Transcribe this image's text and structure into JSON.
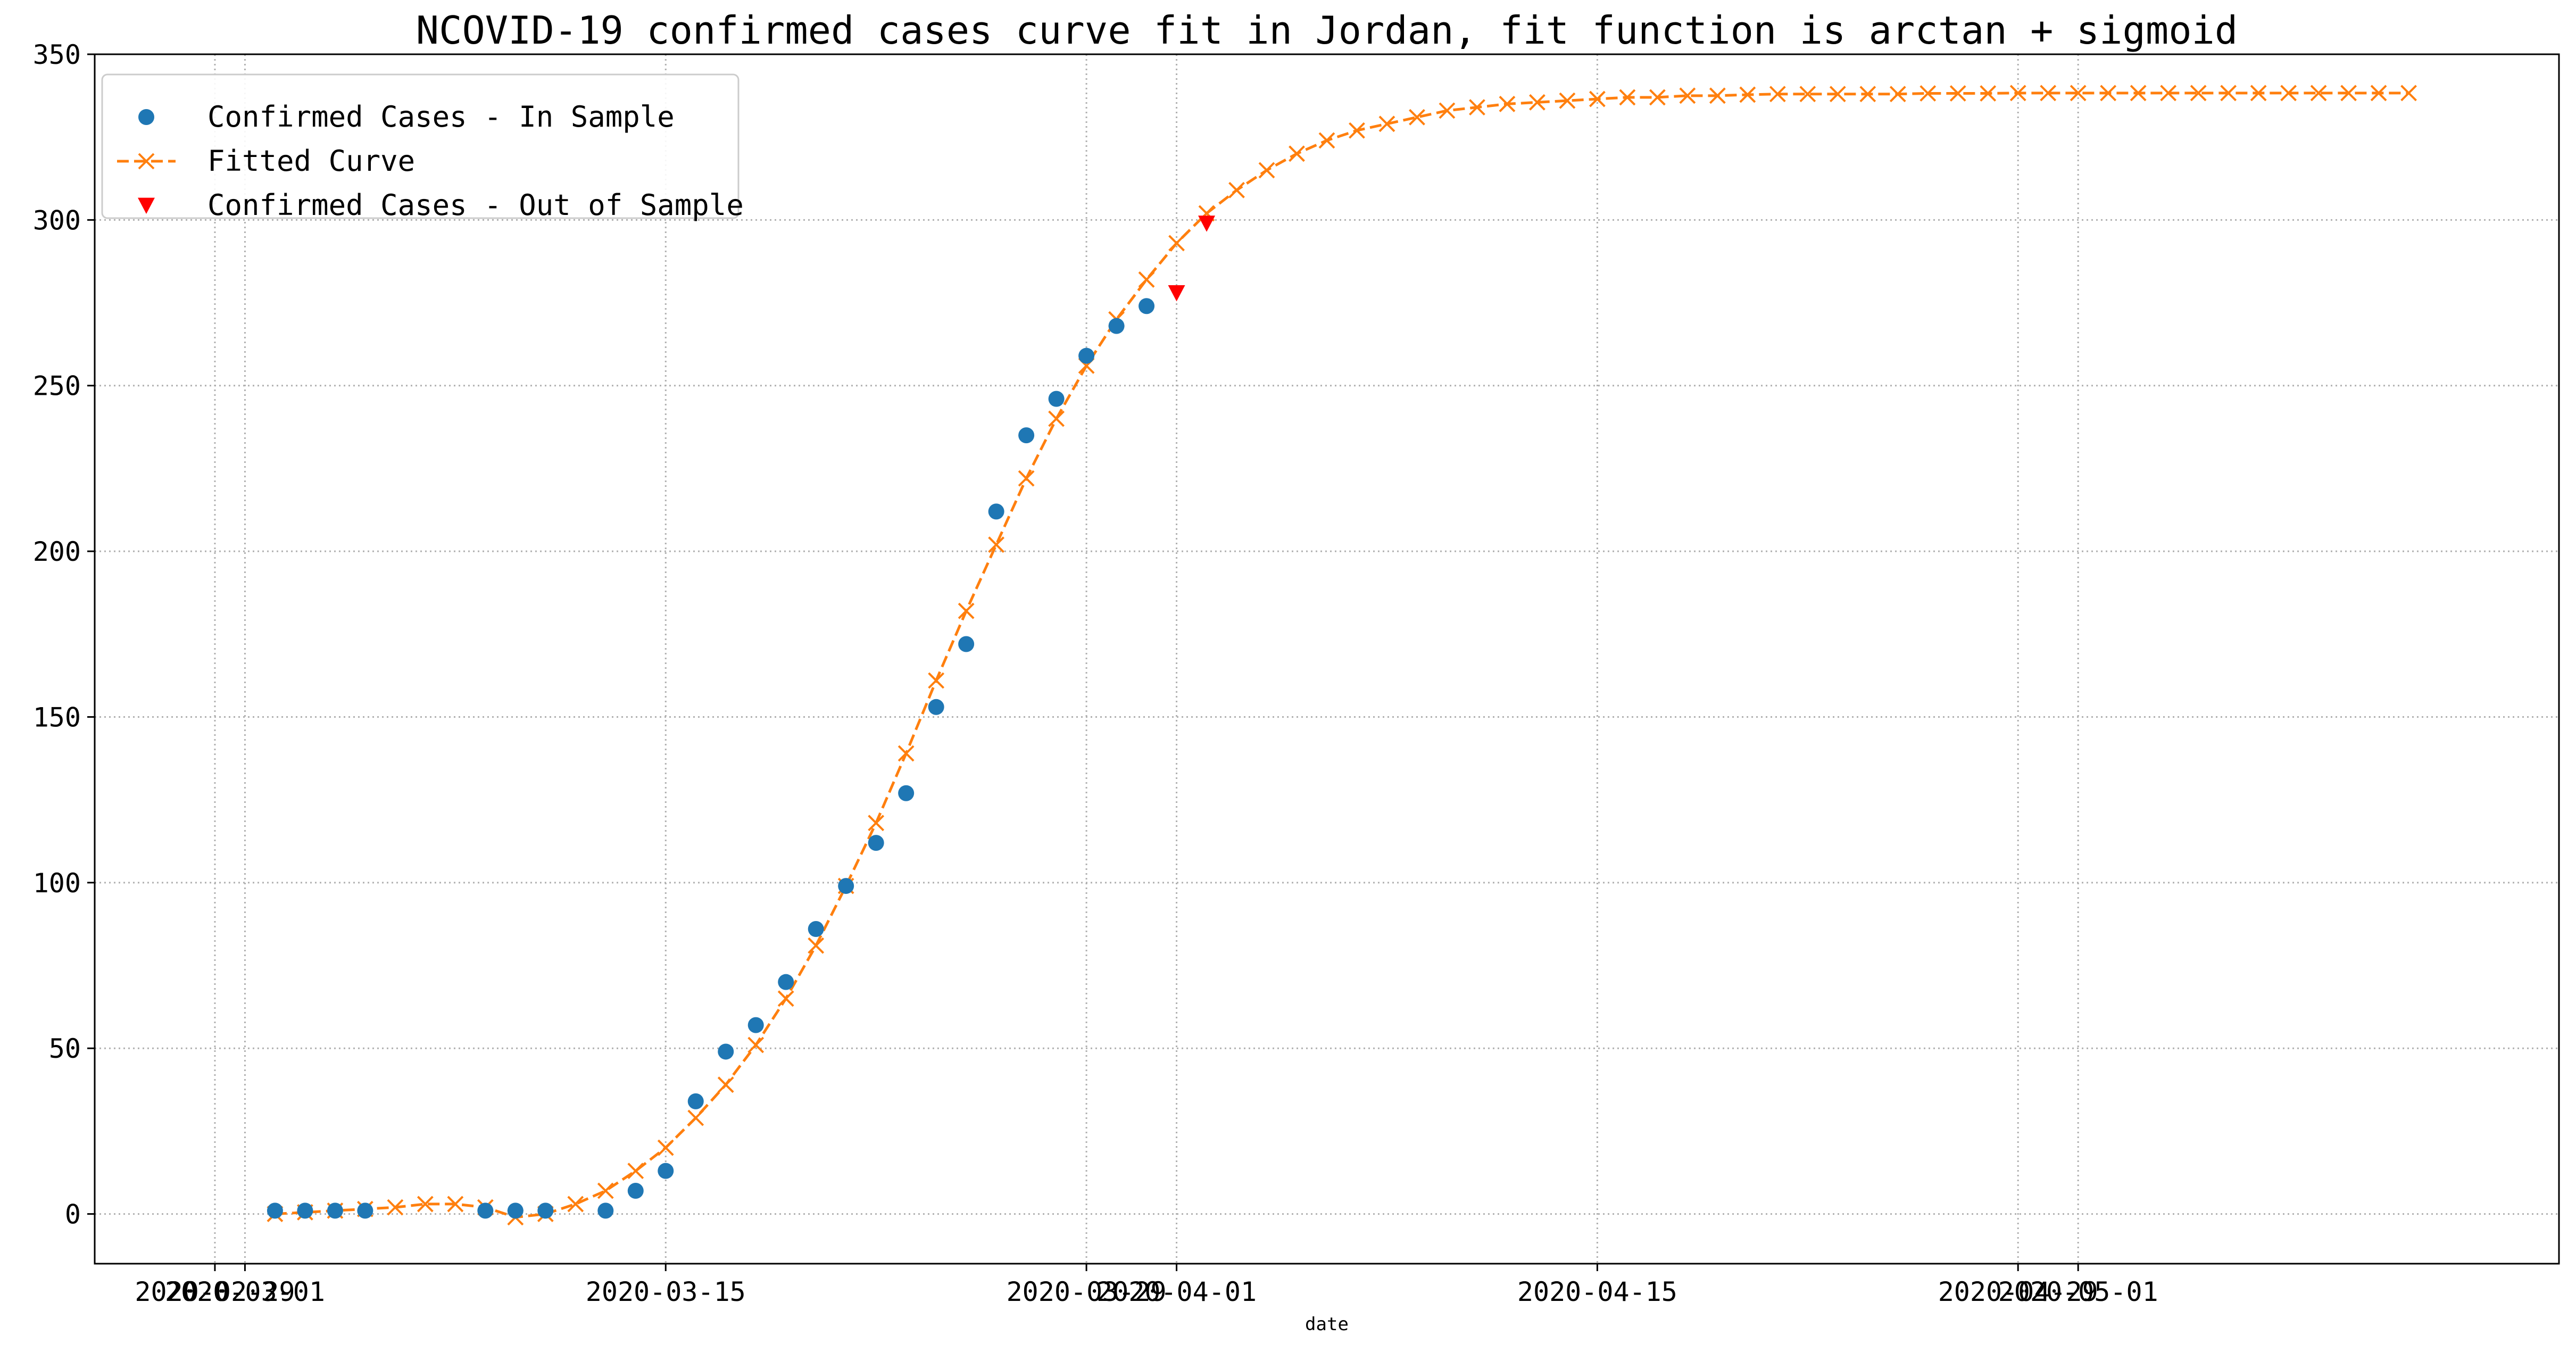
{
  "chart_data": {
    "type": "line",
    "title": "NCOVID-19 confirmed cases curve fit in Jordan, fit function is arctan + sigmoid",
    "xlabel": "date",
    "ylabel": "",
    "x_tick_labels": [
      "2020-02-29",
      "2020-03-01",
      "2020-03-15",
      "2020-03-29",
      "2020-04-01",
      "2020-04-15",
      "2020-04-29",
      "2020-05-01"
    ],
    "ylim": [
      -15,
      350
    ],
    "y_ticks": [
      0,
      50,
      100,
      150,
      200,
      250,
      300,
      350
    ],
    "grid": true,
    "legend_position": "top-left",
    "colors": {
      "in_sample": "#1f77b4",
      "fitted": "#ff7f0e",
      "out_sample": "#ff0000",
      "grid": "#b0b0b0"
    },
    "series": [
      {
        "name": "Confirmed Cases - In Sample",
        "marker": "circle",
        "points": [
          {
            "x": "2020-03-02",
            "y": 1
          },
          {
            "x": "2020-03-03",
            "y": 1
          },
          {
            "x": "2020-03-04",
            "y": 1
          },
          {
            "x": "2020-03-05",
            "y": 1
          },
          {
            "x": "2020-03-09",
            "y": 1
          },
          {
            "x": "2020-03-10",
            "y": 1
          },
          {
            "x": "2020-03-11",
            "y": 1
          },
          {
            "x": "2020-03-13",
            "y": 1
          },
          {
            "x": "2020-03-14",
            "y": 7
          },
          {
            "x": "2020-03-15",
            "y": 13
          },
          {
            "x": "2020-03-16",
            "y": 34
          },
          {
            "x": "2020-03-17",
            "y": 49
          },
          {
            "x": "2020-03-18",
            "y": 57
          },
          {
            "x": "2020-03-19",
            "y": 70
          },
          {
            "x": "2020-03-20",
            "y": 86
          },
          {
            "x": "2020-03-21",
            "y": 99
          },
          {
            "x": "2020-03-22",
            "y": 112
          },
          {
            "x": "2020-03-23",
            "y": 127
          },
          {
            "x": "2020-03-24",
            "y": 153
          },
          {
            "x": "2020-03-25",
            "y": 172
          },
          {
            "x": "2020-03-26",
            "y": 212
          },
          {
            "x": "2020-03-27",
            "y": 235
          },
          {
            "x": "2020-03-28",
            "y": 246
          },
          {
            "x": "2020-03-29",
            "y": 259
          },
          {
            "x": "2020-03-30",
            "y": 268
          },
          {
            "x": "2020-03-31",
            "y": 274
          }
        ]
      },
      {
        "name": "Fitted Curve",
        "marker": "x",
        "points": [
          {
            "x": "2020-03-02",
            "y": 0
          },
          {
            "x": "2020-03-03",
            "y": 0.5
          },
          {
            "x": "2020-03-04",
            "y": 1
          },
          {
            "x": "2020-03-05",
            "y": 1.5
          },
          {
            "x": "2020-03-06",
            "y": 2
          },
          {
            "x": "2020-03-07",
            "y": 3
          },
          {
            "x": "2020-03-08",
            "y": 3
          },
          {
            "x": "2020-03-09",
            "y": 2
          },
          {
            "x": "2020-03-10",
            "y": -1
          },
          {
            "x": "2020-03-11",
            "y": 0
          },
          {
            "x": "2020-03-12",
            "y": 3
          },
          {
            "x": "2020-03-13",
            "y": 7
          },
          {
            "x": "2020-03-14",
            "y": 13
          },
          {
            "x": "2020-03-15",
            "y": 20
          },
          {
            "x": "2020-03-16",
            "y": 29
          },
          {
            "x": "2020-03-17",
            "y": 39
          },
          {
            "x": "2020-03-18",
            "y": 51
          },
          {
            "x": "2020-03-19",
            "y": 65
          },
          {
            "x": "2020-03-20",
            "y": 81
          },
          {
            "x": "2020-03-21",
            "y": 99
          },
          {
            "x": "2020-03-22",
            "y": 118
          },
          {
            "x": "2020-03-23",
            "y": 139
          },
          {
            "x": "2020-03-24",
            "y": 161
          },
          {
            "x": "2020-03-25",
            "y": 182
          },
          {
            "x": "2020-03-26",
            "y": 202
          },
          {
            "x": "2020-03-27",
            "y": 222
          },
          {
            "x": "2020-03-28",
            "y": 240
          },
          {
            "x": "2020-03-29",
            "y": 256
          },
          {
            "x": "2020-03-30",
            "y": 270
          },
          {
            "x": "2020-03-31",
            "y": 282
          },
          {
            "x": "2020-04-01",
            "y": 293
          },
          {
            "x": "2020-04-02",
            "y": 302
          },
          {
            "x": "2020-04-03",
            "y": 309
          },
          {
            "x": "2020-04-04",
            "y": 315
          },
          {
            "x": "2020-04-05",
            "y": 320
          },
          {
            "x": "2020-04-06",
            "y": 324
          },
          {
            "x": "2020-04-07",
            "y": 327
          },
          {
            "x": "2020-04-08",
            "y": 329
          },
          {
            "x": "2020-04-09",
            "y": 331
          },
          {
            "x": "2020-04-10",
            "y": 333
          },
          {
            "x": "2020-04-11",
            "y": 334
          },
          {
            "x": "2020-04-12",
            "y": 335
          },
          {
            "x": "2020-04-13",
            "y": 335.5
          },
          {
            "x": "2020-04-14",
            "y": 336
          },
          {
            "x": "2020-04-15",
            "y": 336.5
          },
          {
            "x": "2020-04-16",
            "y": 337
          },
          {
            "x": "2020-04-17",
            "y": 337
          },
          {
            "x": "2020-04-18",
            "y": 337.5
          },
          {
            "x": "2020-04-19",
            "y": 337.5
          },
          {
            "x": "2020-04-20",
            "y": 337.8
          },
          {
            "x": "2020-04-21",
            "y": 338
          },
          {
            "x": "2020-04-22",
            "y": 338
          },
          {
            "x": "2020-04-23",
            "y": 338
          },
          {
            "x": "2020-04-24",
            "y": 338
          },
          {
            "x": "2020-04-25",
            "y": 338
          },
          {
            "x": "2020-04-26",
            "y": 338.2
          },
          {
            "x": "2020-04-27",
            "y": 338.2
          },
          {
            "x": "2020-04-28",
            "y": 338.2
          },
          {
            "x": "2020-04-29",
            "y": 338.3
          },
          {
            "x": "2020-04-30",
            "y": 338.3
          },
          {
            "x": "2020-05-01",
            "y": 338.3
          },
          {
            "x": "2020-05-02",
            "y": 338.3
          },
          {
            "x": "2020-05-03",
            "y": 338.3
          },
          {
            "x": "2020-05-04",
            "y": 338.3
          },
          {
            "x": "2020-05-05",
            "y": 338.3
          },
          {
            "x": "2020-05-06",
            "y": 338.3
          },
          {
            "x": "2020-05-07",
            "y": 338.3
          },
          {
            "x": "2020-05-08",
            "y": 338.3
          },
          {
            "x": "2020-05-09",
            "y": 338.3
          },
          {
            "x": "2020-05-10",
            "y": 338.3
          },
          {
            "x": "2020-05-11",
            "y": 338.3
          },
          {
            "x": "2020-05-12",
            "y": 338.3
          }
        ]
      },
      {
        "name": "Confirmed Cases - Out of Sample",
        "marker": "triangle-down",
        "points": [
          {
            "x": "2020-04-01",
            "y": 278
          },
          {
            "x": "2020-04-02",
            "y": 299
          }
        ]
      }
    ]
  }
}
